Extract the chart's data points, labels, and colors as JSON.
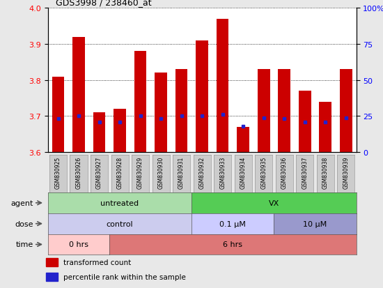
{
  "title": "GDS3998 / 238460_at",
  "samples": [
    "GSM830925",
    "GSM830926",
    "GSM830927",
    "GSM830928",
    "GSM830929",
    "GSM830930",
    "GSM830931",
    "GSM830932",
    "GSM830933",
    "GSM830934",
    "GSM830935",
    "GSM830936",
    "GSM830937",
    "GSM830938",
    "GSM830939"
  ],
  "bar_values": [
    3.81,
    3.92,
    3.71,
    3.72,
    3.88,
    3.82,
    3.83,
    3.91,
    3.97,
    3.67,
    3.83,
    3.83,
    3.77,
    3.74,
    3.83
  ],
  "percentile_values": [
    3.693,
    3.7,
    3.683,
    3.683,
    3.7,
    3.693,
    3.7,
    3.7,
    3.705,
    3.672,
    3.695,
    3.693,
    3.683,
    3.683,
    3.695
  ],
  "ymin": 3.6,
  "ymax": 4.0,
  "yticks": [
    3.6,
    3.7,
    3.8,
    3.9,
    4.0
  ],
  "yticks_right": [
    0,
    25,
    50,
    75,
    100
  ],
  "bar_color": "#cc0000",
  "percentile_color": "#2222cc",
  "bg_color": "#e8e8e8",
  "plot_bg": "#ffffff",
  "tick_box_color": "#cccccc",
  "agent_groups": [
    {
      "label": "untreated",
      "start": 0,
      "end": 7,
      "color": "#aaddaa"
    },
    {
      "label": "VX",
      "start": 7,
      "end": 15,
      "color": "#55cc55"
    }
  ],
  "dose_groups": [
    {
      "label": "control",
      "start": 0,
      "end": 7,
      "color": "#ccccee"
    },
    {
      "label": "0.1 μM",
      "start": 7,
      "end": 11,
      "color": "#ccccff"
    },
    {
      "label": "10 μM",
      "start": 11,
      "end": 15,
      "color": "#9999cc"
    }
  ],
  "time_groups": [
    {
      "label": "0 hrs",
      "start": 0,
      "end": 3,
      "color": "#ffcccc"
    },
    {
      "label": "6 hrs",
      "start": 3,
      "end": 15,
      "color": "#dd7777"
    }
  ],
  "legend_items": [
    {
      "label": "transformed count",
      "color": "#cc0000"
    },
    {
      "label": "percentile rank within the sample",
      "color": "#2222cc"
    }
  ]
}
